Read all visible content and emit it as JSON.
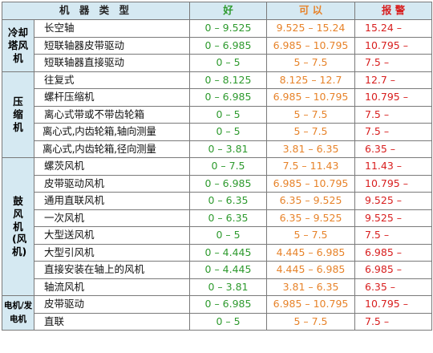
{
  "headers": {
    "machine_type": "机 器 类 型",
    "good": "好",
    "acceptable": "可 以",
    "alarm": "报 警"
  },
  "colors": {
    "header_bg": "#d5e9f2",
    "good": "#2e9a2e",
    "acceptable": "#e7832a",
    "alarm": "#d81e1e"
  },
  "groups": [
    {
      "category": "冷却塔风机",
      "rows": [
        {
          "machine": "长空轴",
          "good": "0 – 9.525",
          "acceptable": "9.525 – 15.24",
          "alarm": "15.24 –"
        },
        {
          "machine": "短联轴器皮带驱动",
          "good": "0 – 6.985",
          "acceptable": "6.985 – 10.795",
          "alarm": "10.795 –"
        },
        {
          "machine": "短联轴器直接驱动",
          "good": "0 – 5",
          "acceptable": "5 – 7.5",
          "alarm": "7.5 –"
        }
      ]
    },
    {
      "category": "压缩机",
      "rows": [
        {
          "machine": "往复式",
          "good": "0 – 8.125",
          "acceptable": "8.125 – 12.7",
          "alarm": "12.7 –"
        },
        {
          "machine": "螺杆压缩机",
          "good": "0 – 6.985",
          "acceptable": "6.985 – 10.795",
          "alarm": "10.795 –"
        },
        {
          "machine": "离心式带或不带齿轮箱",
          "good": "0 – 5",
          "acceptable": "5 – 7.5",
          "alarm": "7.5 –"
        },
        {
          "machine": "离心式,内齿轮箱,轴向测量",
          "good": "0 – 5",
          "acceptable": "5 – 7.5",
          "alarm": "7.5 –"
        },
        {
          "machine": "离心式,内齿轮箱,径向测量",
          "good": "0 – 3.81",
          "acceptable": "3.81 – 6.35",
          "alarm": "6.35 –"
        }
      ]
    },
    {
      "category": "鼓风机(风机)",
      "rows": [
        {
          "machine": "螺茨风机",
          "good": "0 – 7.5",
          "acceptable": "7.5 – 11.43",
          "alarm": "11.43 –"
        },
        {
          "machine": "皮带驱动风机",
          "good": "0 – 6.985",
          "acceptable": "6.985 – 10.795",
          "alarm": "10.795 –"
        },
        {
          "machine": "通用直联风机",
          "good": "0 – 6.35",
          "acceptable": "6.35 – 9.525",
          "alarm": "9.525 –"
        },
        {
          "machine": "一次风机",
          "good": "0 – 6.35",
          "acceptable": "6.35 – 9.525",
          "alarm": "9.525 –"
        },
        {
          "machine": "大型送风机",
          "good": "0 – 5",
          "acceptable": "5 – 7.5",
          "alarm": "7.5 –"
        },
        {
          "machine": "大型引风机",
          "good": "0 – 4.445",
          "acceptable": "4.445 – 6.985",
          "alarm": "6.985 –"
        },
        {
          "machine": "直接安装在轴上的风机",
          "good": "0 – 4.445",
          "acceptable": "4.445 – 6.985",
          "alarm": "6.985 –"
        },
        {
          "machine": "轴流风机",
          "good": "0 – 3.81",
          "acceptable": "3.81 – 6.35",
          "alarm": "6.35 –"
        }
      ]
    },
    {
      "category": "电机/发电机",
      "rows": [
        {
          "machine": "皮带驱动",
          "good": "0 – 6.985",
          "acceptable": "6.985 – 10.795",
          "alarm": "10.795 –"
        },
        {
          "machine": "直联",
          "good": "0 – 5",
          "acceptable": "5 – 7.5",
          "alarm": "7.5 –"
        }
      ]
    }
  ]
}
